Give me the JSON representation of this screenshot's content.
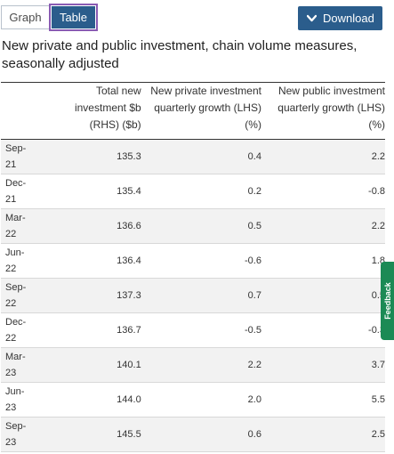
{
  "toolbar": {
    "graph_tab": "Graph",
    "table_tab": "Table",
    "download_label": "Download",
    "accent_color": "#2b5d8c",
    "focus_color": "#8a5bb3"
  },
  "caption": "New private and public investment, chain volume measures, seasonally adjusted",
  "table": {
    "headers": [
      "",
      "Total new investment $b (RHS) ($b)",
      "New private investment quarterly growth (LHS) (%)",
      "New public investment quarterly growth (LHS) (%)"
    ],
    "rows": [
      {
        "date_top": "Sep-",
        "date_bottom": "21",
        "total": "135.3",
        "private": "0.4",
        "public": "2.2"
      },
      {
        "date_top": "Dec-",
        "date_bottom": "21",
        "total": "135.4",
        "private": "0.2",
        "public": "-0.8"
      },
      {
        "date_top": "Mar-",
        "date_bottom": "22",
        "total": "136.6",
        "private": "0.5",
        "public": "2.2"
      },
      {
        "date_top": "Jun-",
        "date_bottom": "22",
        "total": "136.4",
        "private": "-0.6",
        "public": "1.8"
      },
      {
        "date_top": "Sep-",
        "date_bottom": "22",
        "total": "137.3",
        "private": "0.7",
        "public": "0.5"
      },
      {
        "date_top": "Dec-",
        "date_bottom": "22",
        "total": "136.7",
        "private": "-0.5",
        "public": "-0.3"
      },
      {
        "date_top": "Mar-",
        "date_bottom": "23",
        "total": "140.1",
        "private": "2.2",
        "public": "3.7"
      },
      {
        "date_top": "Jun-",
        "date_bottom": "23",
        "total": "144.0",
        "private": "2.0",
        "public": "5.5"
      },
      {
        "date_top": "Sep-",
        "date_bottom": "23",
        "total": "145.5",
        "private": "0.6",
        "public": "2.5"
      }
    ]
  },
  "feedback": {
    "label": "Feedback",
    "color": "#1b8a55"
  }
}
